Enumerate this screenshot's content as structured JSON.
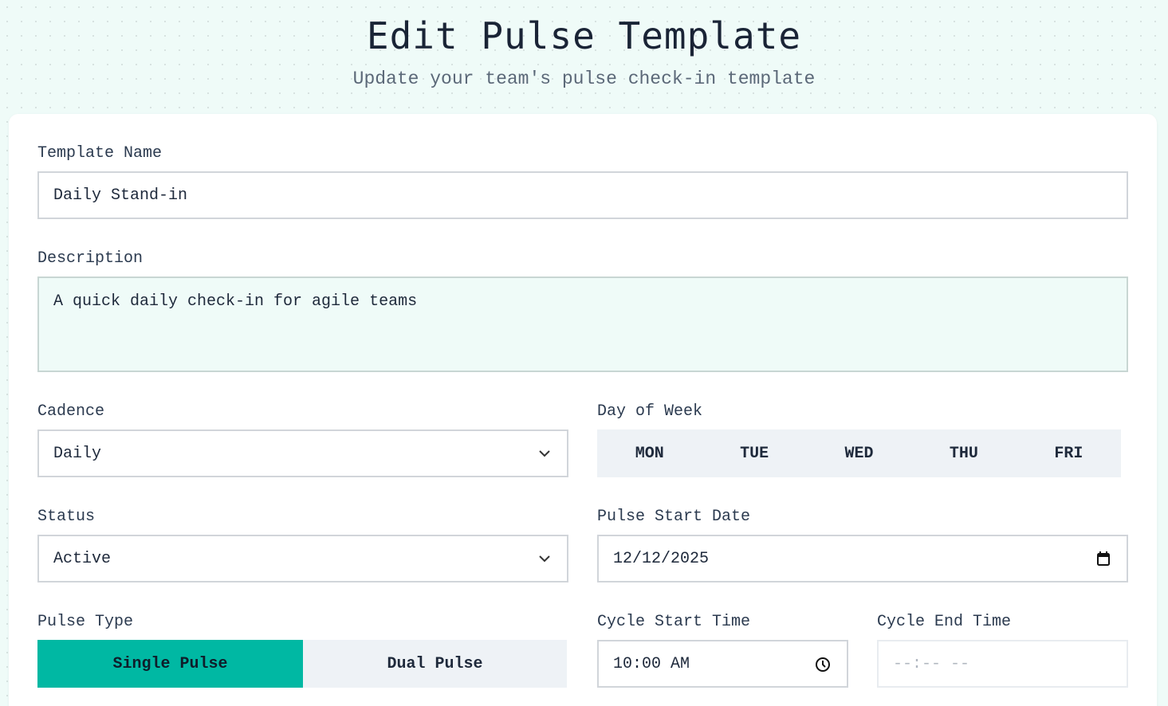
{
  "header": {
    "title": "Edit Pulse Template",
    "subtitle": "Update your team's pulse check-in template"
  },
  "form": {
    "template_name": {
      "label": "Template Name",
      "value": "Daily Stand-in"
    },
    "description": {
      "label": "Description",
      "value": "A quick daily check-in for agile teams"
    },
    "cadence": {
      "label": "Cadence",
      "value": "Daily",
      "icon": "chevron-down-icon"
    },
    "day_of_week": {
      "label": "Day of Week",
      "days": [
        "MON",
        "TUE",
        "WED",
        "THU",
        "FRI"
      ]
    },
    "status": {
      "label": "Status",
      "value": "Active",
      "icon": "chevron-down-icon"
    },
    "pulse_start_date": {
      "label": "Pulse Start Date",
      "value": "12/12/2025",
      "icon": "calendar-icon"
    },
    "pulse_type": {
      "label": "Pulse Type",
      "options": [
        "Single Pulse",
        "Dual Pulse"
      ],
      "selected": "Single Pulse"
    },
    "cycle_start_time": {
      "label": "Cycle Start Time",
      "value": "10:00 AM",
      "icon": "clock-icon"
    },
    "cycle_end_time": {
      "label": "Cycle End Time",
      "placeholder": "--:-- --"
    }
  },
  "colors": {
    "accent": "#00b8a3",
    "background": "#effbf8"
  }
}
